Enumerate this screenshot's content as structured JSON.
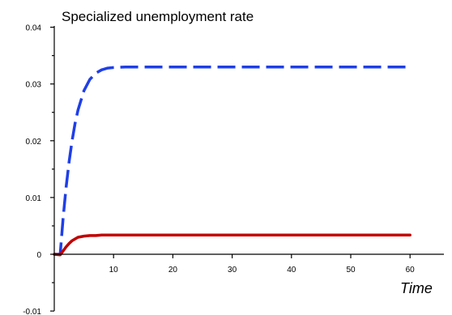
{
  "chart_data": {
    "type": "line",
    "title": "Specialized unemployment rate",
    "xlabel": "Time",
    "ylabel": "",
    "xlim": [
      0,
      63
    ],
    "ylim": [
      -0.01,
      0.04
    ],
    "xticks": [
      10,
      20,
      30,
      40,
      50,
      60
    ],
    "yticks": [
      -0.01,
      0,
      0.01,
      0.02,
      0.03,
      0.04
    ],
    "ytick_labels": [
      "-0.01",
      "0",
      "0.01",
      "0.02",
      "0.03",
      "0.04"
    ],
    "grid": false,
    "series": [
      {
        "color": "#1f3fe8",
        "style": "dashed",
        "x": [
          0,
          1,
          1.5,
          2,
          2.5,
          3,
          3.5,
          4,
          5,
          6,
          7,
          8,
          9,
          10,
          12,
          15,
          20,
          30,
          40,
          50,
          60
        ],
        "y": [
          0,
          0,
          0.0065,
          0.0118,
          0.0163,
          0.02,
          0.023,
          0.0254,
          0.0288,
          0.0308,
          0.0319,
          0.0325,
          0.0328,
          0.0329,
          0.033,
          0.033,
          0.033,
          0.033,
          0.033,
          0.033,
          0.033
        ]
      },
      {
        "color": "#c00000",
        "style": "solid",
        "x": [
          0,
          1,
          1.5,
          2,
          2.5,
          3,
          3.5,
          4,
          5,
          6,
          7,
          8,
          10,
          15,
          20,
          30,
          40,
          50,
          60
        ],
        "y": [
          0,
          -0.0001,
          0.0006,
          0.0013,
          0.0019,
          0.0024,
          0.0027,
          0.003,
          0.0032,
          0.0033,
          0.0033,
          0.0034,
          0.0034,
          0.0034,
          0.0034,
          0.0034,
          0.0034,
          0.0034,
          0.0034
        ]
      }
    ]
  }
}
